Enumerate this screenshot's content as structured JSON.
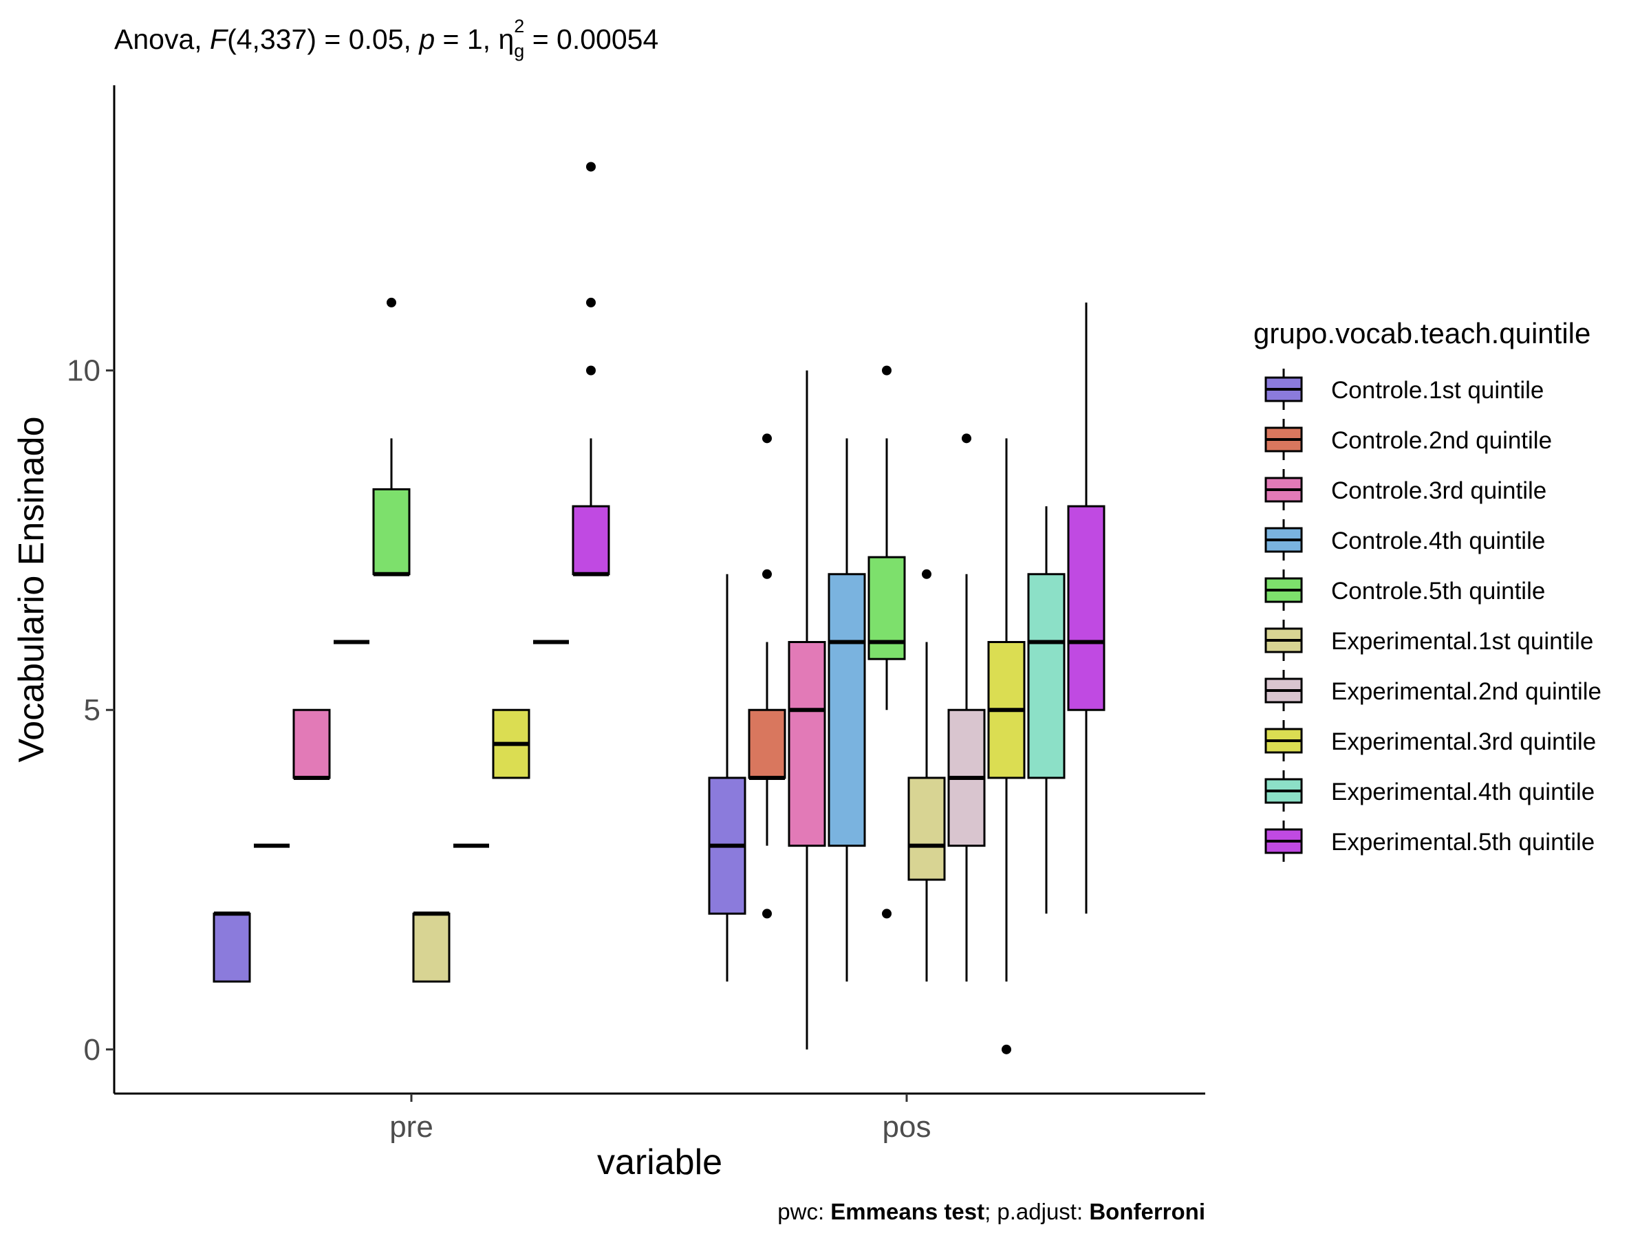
{
  "chart_data": {
    "type": "boxplot",
    "subtitle": {
      "prefix": "Anova, ",
      "stat_name": "F",
      "stat_args": "(4,337) = 0.05, ",
      "p_name": "p",
      "p_text": " = 1, ",
      "eta_symbol": "η",
      "eta_sub": "g",
      "eta_sup": "2",
      "eta_value": " = 0.00054"
    },
    "xlabel": "variable",
    "ylabel": "Vocabulario Ensinado",
    "categories": [
      "pre",
      "pos"
    ],
    "yticks": [
      0,
      5,
      10
    ],
    "ylim": [
      -0.65,
      14.2
    ],
    "grid": false,
    "legend": {
      "title": "grupo.vocab.teach.quintile",
      "position": "right"
    },
    "caption": {
      "pwc_label": "pwc: ",
      "pwc_value": "Emmeans test",
      "sep": "; p.adjust: ",
      "adj_value": "Bonferroni"
    },
    "series": [
      {
        "name": "Controle.1st quintile",
        "color": "#8b7bdc",
        "boxes": [
          {
            "category": "pre",
            "lower": 1,
            "q1": 1,
            "median": 2,
            "q3": 2,
            "upper": 2,
            "outliers": []
          },
          {
            "category": "pos",
            "lower": 1,
            "q1": 2,
            "median": 3,
            "q3": 4,
            "upper": 7,
            "outliers": []
          }
        ]
      },
      {
        "name": "Controle.2nd quintile",
        "color": "#d9775e",
        "boxes": [
          {
            "category": "pre",
            "lower": 3,
            "q1": 3,
            "median": 3,
            "q3": 3,
            "upper": 3,
            "outliers": []
          },
          {
            "category": "pos",
            "lower": 3,
            "q1": 4,
            "median": 4,
            "q3": 5,
            "upper": 6,
            "outliers": [
              2,
              7,
              9
            ]
          }
        ]
      },
      {
        "name": "Controle.3rd quintile",
        "color": "#e27ab7",
        "boxes": [
          {
            "category": "pre",
            "lower": 4,
            "q1": 4,
            "median": 4,
            "q3": 5,
            "upper": 5,
            "outliers": []
          },
          {
            "category": "pos",
            "lower": 0,
            "q1": 3,
            "median": 5,
            "q3": 6,
            "upper": 10,
            "outliers": []
          }
        ]
      },
      {
        "name": "Controle.4th quintile",
        "color": "#7ab3df",
        "boxes": [
          {
            "category": "pre",
            "lower": 6,
            "q1": 6,
            "median": 6,
            "q3": 6,
            "upper": 6,
            "outliers": []
          },
          {
            "category": "pos",
            "lower": 1,
            "q1": 3,
            "median": 6,
            "q3": 7,
            "upper": 9,
            "outliers": []
          }
        ]
      },
      {
        "name": "Controle.5th quintile",
        "color": "#7de06c",
        "boxes": [
          {
            "category": "pre",
            "lower": 7,
            "q1": 7,
            "median": 7,
            "q3": 8.25,
            "upper": 9,
            "outliers": [
              11
            ]
          },
          {
            "category": "pos",
            "lower": 5,
            "q1": 5.75,
            "median": 6,
            "q3": 7.25,
            "upper": 9,
            "outliers": [
              2,
              10
            ]
          }
        ]
      },
      {
        "name": "Experimental.1st quintile",
        "color": "#d8d493",
        "boxes": [
          {
            "category": "pre",
            "lower": 1,
            "q1": 1,
            "median": 2,
            "q3": 2,
            "upper": 2,
            "outliers": []
          },
          {
            "category": "pos",
            "lower": 1,
            "q1": 2.5,
            "median": 3,
            "q3": 4,
            "upper": 6,
            "outliers": [
              7
            ]
          }
        ]
      },
      {
        "name": "Experimental.2nd quintile",
        "color": "#d9c5cf",
        "boxes": [
          {
            "category": "pre",
            "lower": 3,
            "q1": 3,
            "median": 3,
            "q3": 3,
            "upper": 3,
            "outliers": []
          },
          {
            "category": "pos",
            "lower": 1,
            "q1": 3,
            "median": 4,
            "q3": 5,
            "upper": 7,
            "outliers": [
              9
            ]
          }
        ]
      },
      {
        "name": "Experimental.3rd quintile",
        "color": "#dbdd52",
        "boxes": [
          {
            "category": "pre",
            "lower": 4,
            "q1": 4,
            "median": 4.5,
            "q3": 5,
            "upper": 5,
            "outliers": []
          },
          {
            "category": "pos",
            "lower": 1,
            "q1": 4,
            "median": 5,
            "q3": 6,
            "upper": 9,
            "outliers": [
              0
            ]
          }
        ]
      },
      {
        "name": "Experimental.4th quintile",
        "color": "#8ce0c7",
        "boxes": [
          {
            "category": "pre",
            "lower": 6,
            "q1": 6,
            "median": 6,
            "q3": 6,
            "upper": 6,
            "outliers": []
          },
          {
            "category": "pos",
            "lower": 2,
            "q1": 4,
            "median": 6,
            "q3": 7,
            "upper": 8,
            "outliers": []
          }
        ]
      },
      {
        "name": "Experimental.5th quintile",
        "color": "#c04ae2",
        "boxes": [
          {
            "category": "pre",
            "lower": 7,
            "q1": 7,
            "median": 7,
            "q3": 8,
            "upper": 9,
            "outliers": [
              10,
              11,
              13
            ]
          },
          {
            "category": "pos",
            "lower": 2,
            "q1": 5,
            "median": 6,
            "q3": 8,
            "upper": 11,
            "outliers": []
          }
        ]
      }
    ]
  }
}
